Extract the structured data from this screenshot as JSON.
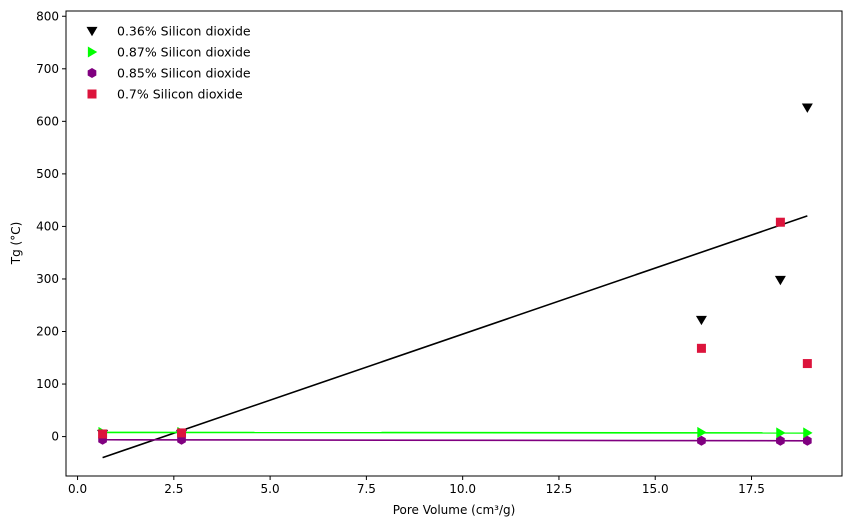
{
  "chart_data": {
    "type": "scatter",
    "title": "",
    "xlabel": "Pore Volume (cm³/g)",
    "ylabel": "Tg (°C)",
    "xlim": [
      -0.3,
      19.85
    ],
    "ylim": [
      -75,
      810
    ],
    "xticks": [
      0.0,
      2.5,
      5.0,
      7.5,
      10.0,
      12.5,
      15.0,
      17.5
    ],
    "xtick_labels": [
      "0.0",
      "2.5",
      "5.0",
      "7.5",
      "10.0",
      "12.5",
      "15.0",
      "17.5"
    ],
    "yticks": [
      0,
      100,
      200,
      300,
      400,
      500,
      600,
      700,
      800
    ],
    "ytick_labels": [
      "0",
      "100",
      "200",
      "300",
      "400",
      "500",
      "600",
      "700",
      "800"
    ],
    "grid": false,
    "legend_position": "top-left",
    "series": [
      {
        "name": "0.36% Silicon dioxide",
        "marker": "triangle-down",
        "color": "#000000",
        "x": [
          0.65,
          2.7,
          16.2,
          18.25,
          18.95
        ],
        "y": [
          5,
          5,
          222,
          298,
          626
        ],
        "fit": {
          "x": [
            0.65,
            18.95
          ],
          "y": [
            -40,
            420
          ]
        }
      },
      {
        "name": "0.87% Silicon dioxide",
        "marker": "triangle-right",
        "color": "#00ff00",
        "x": [
          0.65,
          2.7,
          16.2,
          18.25,
          18.95
        ],
        "y": [
          8,
          8,
          8,
          7,
          7
        ],
        "fit": {
          "x": [
            0.65,
            18.95
          ],
          "y": [
            8,
            7
          ]
        }
      },
      {
        "name": "0.85% Silicon dioxide",
        "marker": "hexagon",
        "color": "#800080",
        "x": [
          0.65,
          2.7,
          16.2,
          18.25,
          18.95
        ],
        "y": [
          -6,
          -6,
          -8,
          -8,
          -8
        ],
        "fit": {
          "x": [
            0.65,
            18.95
          ],
          "y": [
            -6,
            -8
          ]
        }
      },
      {
        "name": "0.7% Silicon dioxide",
        "marker": "square",
        "color": "#dc143c",
        "x": [
          0.65,
          2.7,
          16.2,
          18.25,
          18.95
        ],
        "y": [
          5,
          7,
          168,
          408,
          139
        ],
        "fit": null
      }
    ]
  }
}
